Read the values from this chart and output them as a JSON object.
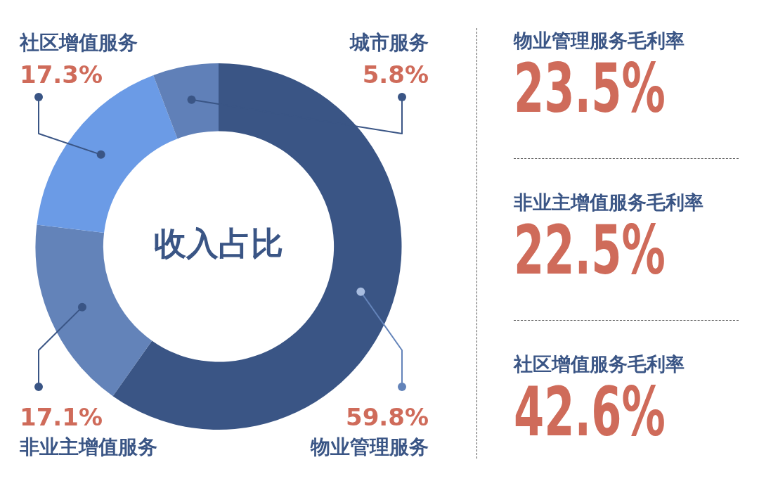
{
  "chart_data": [
    {
      "type": "donut",
      "title": "收入占比",
      "categories": [
        "物业管理服务",
        "非业主增值服务",
        "社区增值服务",
        "城市服务"
      ],
      "values": [
        59.8,
        17.1,
        17.3,
        5.8
      ],
      "colors": [
        "#3a5585",
        "#6383b9",
        "#6b9be6",
        "#6080b8"
      ],
      "value_labels": [
        "59.8%",
        "17.1%",
        "17.3%",
        "5.8%"
      ],
      "legend": false
    },
    {
      "type": "other",
      "annotations": [
        "物业管理服务毛利率",
        "23.5%",
        "非业主增值服务毛利率",
        "22.5%",
        "社区增值服务毛利率",
        "42.6%"
      ]
    }
  ]
}
